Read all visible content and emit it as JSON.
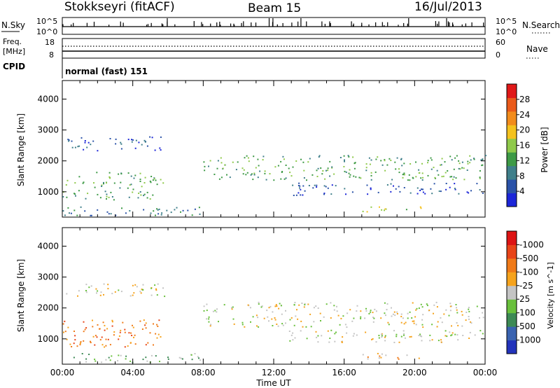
{
  "header": {
    "station": "Stokkseyri (fitACF)",
    "beam": "Beam 15",
    "date": "16/Jul/2013"
  },
  "chart_data": [
    {
      "type": "line",
      "panel": "noise-sky-search",
      "left_label": "N.Sky",
      "right_label": "N.Search",
      "y_ticks_left": [
        "10^5",
        "10^0"
      ],
      "y_ticks_right": [
        "10^5",
        "10^0"
      ],
      "x_ticklabels": [
        "00:00",
        "04:00",
        "08:00",
        "12:00",
        "16:00",
        "20:00",
        "00:00"
      ]
    },
    {
      "type": "line",
      "panel": "frequency-nave",
      "left_label_top": "Freq.",
      "left_label_bottom": "[MHz]",
      "right_label": "Nave",
      "y_ticks_left": [
        "18",
        "8"
      ],
      "y_ticks_right": [
        "60",
        "0"
      ],
      "freq_mhz": 8.5,
      "nave": 45
    },
    {
      "type": "table",
      "panel": "cpid",
      "label": "CPID",
      "text": "normal (fast) 151"
    },
    {
      "type": "heatmap",
      "panel": "power",
      "ylabel": "Slant Range [km]",
      "xlabel": "",
      "x_ticklabels": [
        "00:00",
        "04:00",
        "08:00",
        "12:00",
        "16:00",
        "20:00",
        "00:00"
      ],
      "y_ticklabels": [
        "1000",
        "2000",
        "3000",
        "4000"
      ],
      "xlim_hours": [
        0,
        24
      ],
      "ylim_km": [
        180,
        4600
      ],
      "colorbar_label": "Power [dB]",
      "colorbar_ticks": [
        "4",
        "8",
        "12",
        "16",
        "20",
        "24",
        "28"
      ],
      "colorbar_colors": [
        "#1c26d8",
        "#2a52a8",
        "#3f7f8a",
        "#3e9a46",
        "#8fc94a",
        "#f4c21e",
        "#f28c1c",
        "#ea5a1a",
        "#e01818"
      ],
      "echo_regions": [
        {
          "t": [
            0.2,
            5.8
          ],
          "r": [
            2350,
            2800
          ],
          "level": 1
        },
        {
          "t": [
            0.0,
            5.7
          ],
          "r": [
            750,
            1650
          ],
          "level": 3
        },
        {
          "t": [
            0.0,
            8.0
          ],
          "r": [
            250,
            550
          ],
          "level": 2
        },
        {
          "t": [
            8.0,
            24.0
          ],
          "r": [
            1400,
            2200
          ],
          "level": 3
        },
        {
          "t": [
            17.0,
            20.5
          ],
          "r": [
            350,
            550
          ],
          "level": 4
        },
        {
          "t": [
            12.5,
            24.0
          ],
          "r": [
            900,
            1300
          ],
          "level": 1
        }
      ]
    },
    {
      "type": "heatmap",
      "panel": "velocity",
      "ylabel": "Slant Range [km]",
      "xlabel": "Time UT",
      "x_ticklabels": [
        "00:00",
        "04:00",
        "08:00",
        "12:00",
        "16:00",
        "20:00",
        "00:00"
      ],
      "y_ticklabels": [
        "1000",
        "2000",
        "3000",
        "4000"
      ],
      "xlim_hours": [
        0,
        24
      ],
      "ylim_km": [
        180,
        4600
      ],
      "colorbar_label": "Velocity [m s^-1]",
      "colorbar_ticks": [
        "1000",
        "500",
        "100",
        "25",
        "-25",
        "-100",
        "-500",
        "-1000"
      ],
      "colorbar_colors": [
        "#2233bb",
        "#3a63b0",
        "#3d8a55",
        "#69c03c",
        "#c4c4c4",
        "#f6a31c",
        "#f07a18",
        "#e84418",
        "#dd1414"
      ],
      "echo_regions": [
        {
          "t": [
            0.2,
            5.8
          ],
          "r": [
            2350,
            2800
          ],
          "level": 4
        },
        {
          "t": [
            0.0,
            5.7
          ],
          "r": [
            750,
            1650
          ],
          "level": 6
        },
        {
          "t": [
            0.0,
            8.0
          ],
          "r": [
            250,
            550
          ],
          "level": 3
        },
        {
          "t": [
            8.0,
            24.0
          ],
          "r": [
            1400,
            2200
          ],
          "level": 4
        },
        {
          "t": [
            17.0,
            20.5
          ],
          "r": [
            350,
            550
          ],
          "level": 5
        },
        {
          "t": [
            12.5,
            24.0
          ],
          "r": [
            900,
            1300
          ],
          "level": 4
        }
      ]
    }
  ]
}
